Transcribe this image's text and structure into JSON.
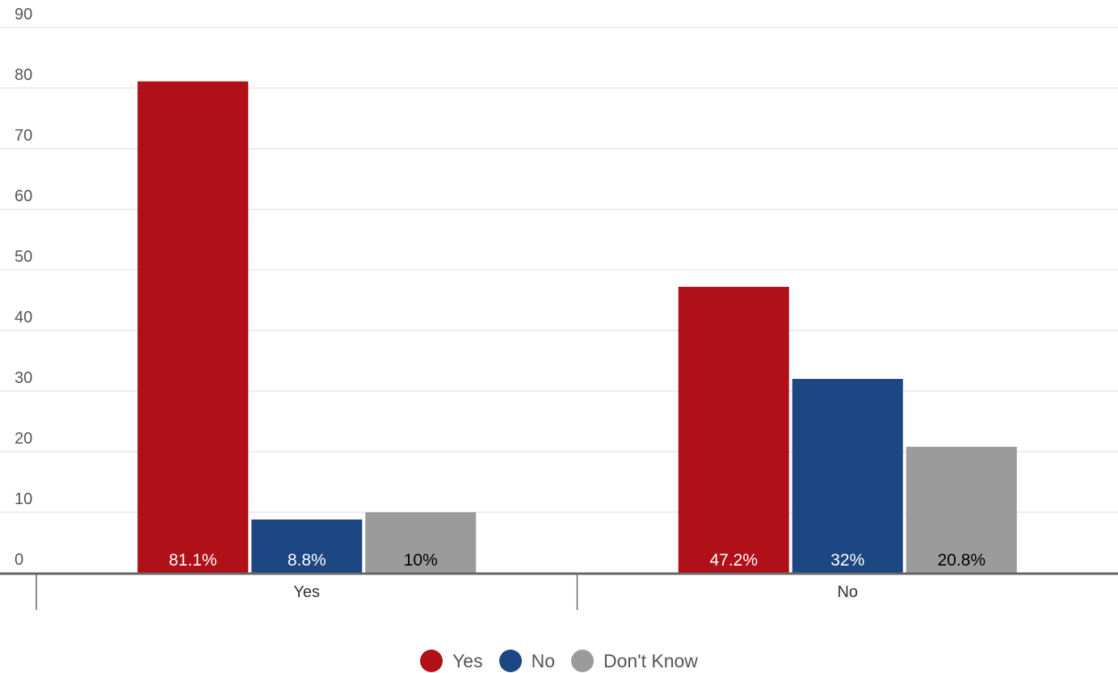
{
  "chart_data": {
    "type": "bar",
    "title": "",
    "xlabel": "",
    "ylabel": "",
    "ylim": [
      0,
      90
    ],
    "yticks": [
      0,
      10,
      20,
      30,
      40,
      50,
      60,
      70,
      80,
      90
    ],
    "grid": true,
    "legend_position": "bottom-center",
    "categories": [
      "Yes",
      "No"
    ],
    "series": [
      {
        "name": "Yes",
        "color": "#b01018",
        "label_color": "#ffffff",
        "values": [
          81.1,
          47.2
        ],
        "labels": [
          "81.1%",
          "47.2%"
        ]
      },
      {
        "name": "No",
        "color": "#1c4782",
        "label_color": "#ffffff",
        "values": [
          8.8,
          32
        ],
        "labels": [
          "8.8%",
          "32%"
        ]
      },
      {
        "name": "Don't Know",
        "color": "#9b9b9b",
        "label_color": "#000000",
        "values": [
          10,
          20.8
        ],
        "labels": [
          "10%",
          "20.8%"
        ]
      }
    ]
  }
}
